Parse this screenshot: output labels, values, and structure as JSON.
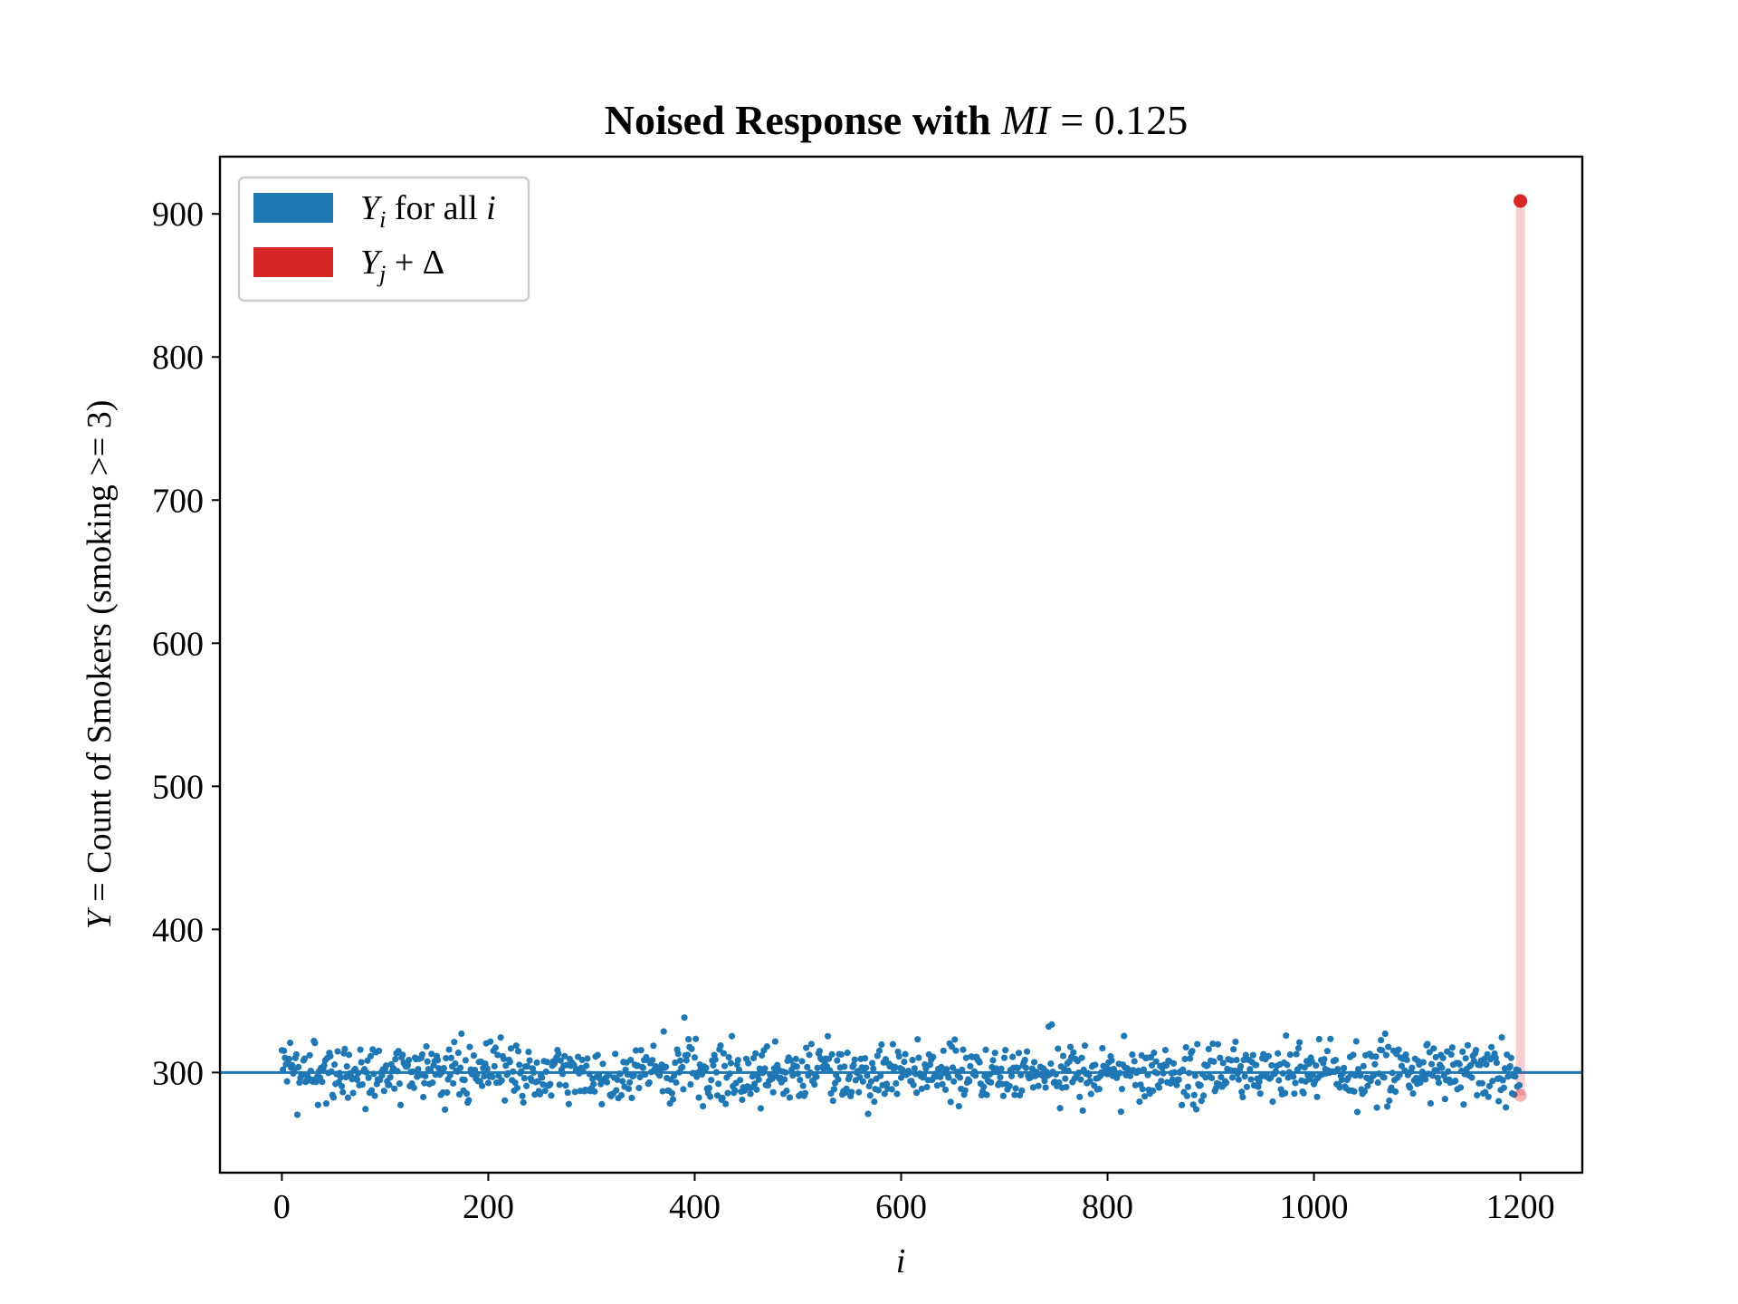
{
  "chart_data": {
    "type": "scatter",
    "title": {
      "prefix": "Noised Response with ",
      "math_var": "MI",
      "math_rest": " = 0.125"
    },
    "xlabel": "i",
    "ylabel": {
      "var": "Y",
      "rest": " = Count of Smokers (smoking >= 3)"
    },
    "xlim": [
      -60,
      1260
    ],
    "ylim": [
      230,
      940
    ],
    "xticks": [
      0,
      200,
      400,
      600,
      800,
      1000,
      1200
    ],
    "yticks": [
      300,
      400,
      500,
      600,
      700,
      800,
      900
    ],
    "xtick_labels": [
      "0",
      "200",
      "400",
      "600",
      "800",
      "1000",
      "1200"
    ],
    "ytick_labels": [
      "300",
      "400",
      "500",
      "600",
      "700",
      "800",
      "900"
    ],
    "grid": false,
    "legend_position": "top-left",
    "legend": [
      {
        "var": "Y",
        "sub": "i",
        "rest": " for all ",
        "rest_var": "i",
        "color": "#1f77b4"
      },
      {
        "var": "Y",
        "sub": "j",
        "rest": " + Δ",
        "color": "#d62728"
      }
    ],
    "series": [
      {
        "type": "scatter",
        "n_points": 1200,
        "x_range": [
          0,
          1199
        ],
        "y_center": 300,
        "y_spread_std": 11,
        "y_min": 262,
        "y_max": 339,
        "color": "#1f77b4"
      }
    ],
    "reference_line": {
      "y": 300,
      "color": "#1f77b4"
    },
    "highlight": {
      "x": 1200,
      "y_original": 284,
      "y_noised": 909,
      "color": "#d62728"
    }
  }
}
